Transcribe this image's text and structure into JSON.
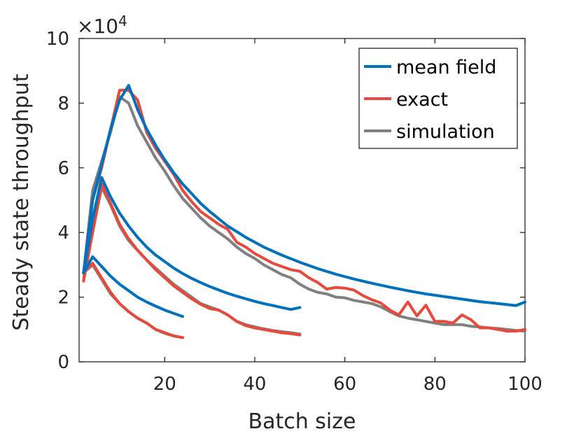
{
  "chart_data": {
    "type": "line",
    "title": "",
    "xlabel": "Batch size",
    "ylabel": "Steady state throughput",
    "y_multiplier_base": "×10",
    "y_multiplier_exp": "4",
    "xlim": [
      1,
      100
    ],
    "ylim": [
      0,
      10
    ],
    "xticks": [
      20,
      40,
      60,
      80,
      100
    ],
    "yticks": [
      0,
      2,
      4,
      6,
      8,
      10
    ],
    "xtick_labels": [
      "20",
      "40",
      "60",
      "80",
      "100"
    ],
    "ytick_labels": [
      "0",
      "2",
      "4",
      "6",
      "8",
      "10"
    ],
    "legend_position": "top-right",
    "colors": {
      "mean field": "#0072BD",
      "exact": "#E8493A",
      "simulation": "#808080"
    },
    "legend": [
      {
        "name": "mean field",
        "color": "#0072BD"
      },
      {
        "name": "exact",
        "color": "#E8493A"
      },
      {
        "name": "simulation",
        "color": "#808080"
      }
    ],
    "series": [
      {
        "name": "mean field",
        "group": 1,
        "x": [
          2,
          4,
          6,
          8,
          10,
          12,
          14,
          16,
          18,
          20,
          22,
          24
        ],
        "y": [
          2.75,
          3.25,
          2.95,
          2.65,
          2.4,
          2.2,
          2.0,
          1.85,
          1.72,
          1.6,
          1.5,
          1.4
        ]
      },
      {
        "name": "exact",
        "group": 1,
        "x": [
          2,
          4,
          6,
          8,
          10,
          12,
          14,
          16,
          18,
          20,
          22,
          24
        ],
        "y": [
          2.75,
          3.05,
          2.6,
          2.15,
          1.8,
          1.55,
          1.35,
          1.2,
          1.0,
          0.9,
          0.8,
          0.75
        ]
      },
      {
        "name": "simulation",
        "group": 1,
        "x": [
          2,
          4,
          6,
          8,
          10,
          12,
          14,
          16,
          18,
          20,
          22,
          24
        ],
        "y": [
          2.75,
          3.0,
          2.55,
          2.1,
          1.8,
          1.55,
          1.35,
          1.2,
          1.0,
          0.88,
          0.8,
          0.75
        ]
      },
      {
        "name": "mean field",
        "group": 2,
        "x": [
          2,
          4,
          6,
          8,
          10,
          12,
          14,
          16,
          18,
          20,
          22,
          24,
          26,
          28,
          30,
          32,
          34,
          36,
          38,
          40,
          42,
          44,
          46,
          48,
          50
        ],
        "y": [
          2.75,
          4.4,
          5.7,
          5.1,
          4.6,
          4.2,
          3.85,
          3.55,
          3.3,
          3.1,
          2.9,
          2.73,
          2.58,
          2.45,
          2.33,
          2.22,
          2.12,
          2.03,
          1.95,
          1.87,
          1.8,
          1.74,
          1.68,
          1.62,
          1.68
        ]
      },
      {
        "name": "exact",
        "group": 2,
        "x": [
          2,
          4,
          6,
          8,
          10,
          12,
          14,
          16,
          18,
          20,
          22,
          24,
          26,
          28,
          30,
          32,
          34,
          36,
          38,
          40,
          42,
          44,
          46,
          48,
          50
        ],
        "y": [
          2.5,
          4.0,
          5.5,
          4.9,
          4.25,
          3.8,
          3.45,
          3.15,
          2.85,
          2.6,
          2.35,
          2.15,
          1.95,
          1.78,
          1.65,
          1.6,
          1.45,
          1.25,
          1.12,
          1.05,
          1.0,
          0.95,
          0.9,
          0.87,
          0.83
        ]
      },
      {
        "name": "simulation",
        "group": 2,
        "x": [
          2,
          4,
          6,
          8,
          10,
          12,
          14,
          16,
          18,
          20,
          22,
          24,
          26,
          28,
          30,
          32,
          34,
          36,
          38,
          40,
          42,
          44,
          46,
          48,
          50
        ],
        "y": [
          2.75,
          4.0,
          5.4,
          4.85,
          4.2,
          3.75,
          3.45,
          3.15,
          2.9,
          2.65,
          2.4,
          2.2,
          2.0,
          1.8,
          1.7,
          1.6,
          1.45,
          1.25,
          1.15,
          1.08,
          1.02,
          0.97,
          0.93,
          0.9,
          0.86
        ]
      },
      {
        "name": "mean field",
        "group": 3,
        "x": [
          2,
          4,
          6,
          8,
          10,
          12,
          14,
          16,
          18,
          20,
          22,
          24,
          26,
          28,
          30,
          34,
          38,
          42,
          46,
          50,
          54,
          58,
          62,
          66,
          70,
          74,
          78,
          82,
          86,
          90,
          94,
          98,
          100
        ],
        "y": [
          2.75,
          5.0,
          6.1,
          7.2,
          8.1,
          8.55,
          7.8,
          7.2,
          6.7,
          6.25,
          5.85,
          5.5,
          5.2,
          4.9,
          4.65,
          4.2,
          3.85,
          3.55,
          3.3,
          3.08,
          2.88,
          2.71,
          2.56,
          2.43,
          2.31,
          2.2,
          2.1,
          2.02,
          1.94,
          1.86,
          1.8,
          1.74,
          1.85
        ]
      },
      {
        "name": "exact",
        "group": 3,
        "x": [
          2,
          4,
          6,
          8,
          10,
          12,
          14,
          16,
          18,
          20,
          22,
          24,
          26,
          28,
          30,
          32,
          34,
          36,
          38,
          40,
          42,
          44,
          46,
          48,
          50,
          52,
          54,
          56,
          58,
          60,
          62,
          64,
          66,
          68,
          70,
          72,
          74,
          76,
          78,
          80,
          82,
          84,
          86,
          88,
          90,
          92,
          94,
          96,
          98,
          100
        ],
        "y": [
          2.5,
          5.0,
          6.0,
          7.2,
          8.4,
          8.4,
          8.1,
          7.1,
          6.6,
          6.2,
          5.8,
          5.3,
          4.95,
          4.65,
          4.45,
          4.25,
          4.1,
          3.7,
          3.55,
          3.35,
          3.2,
          3.05,
          2.95,
          2.85,
          2.8,
          2.6,
          2.45,
          2.25,
          2.3,
          2.28,
          2.22,
          2.05,
          1.92,
          1.82,
          1.6,
          1.45,
          1.85,
          1.42,
          1.75,
          1.25,
          1.25,
          1.2,
          1.45,
          1.3,
          1.05,
          1.05,
          1.0,
          0.95,
          0.95,
          1.0
        ]
      },
      {
        "name": "simulation",
        "group": 3,
        "x": [
          2,
          4,
          6,
          8,
          10,
          12,
          14,
          16,
          18,
          20,
          22,
          24,
          26,
          28,
          30,
          32,
          34,
          36,
          38,
          40,
          42,
          44,
          46,
          48,
          50,
          52,
          54,
          56,
          58,
          60,
          62,
          64,
          66,
          68,
          70,
          72,
          74,
          76,
          78,
          80,
          82,
          84,
          86,
          88,
          90,
          92,
          94,
          96,
          98,
          100
        ],
        "y": [
          2.75,
          5.3,
          6.2,
          7.1,
          8.2,
          8.0,
          7.3,
          6.8,
          6.3,
          5.9,
          5.45,
          5.05,
          4.75,
          4.45,
          4.2,
          4.0,
          3.8,
          3.55,
          3.35,
          3.2,
          3.0,
          2.85,
          2.7,
          2.6,
          2.4,
          2.25,
          2.15,
          2.1,
          2.0,
          1.98,
          1.9,
          1.85,
          1.8,
          1.7,
          1.55,
          1.42,
          1.35,
          1.3,
          1.25,
          1.2,
          1.15,
          1.15,
          1.15,
          1.1,
          1.08,
          1.05,
          1.03,
          1.0,
          0.97,
          0.95
        ]
      }
    ]
  }
}
